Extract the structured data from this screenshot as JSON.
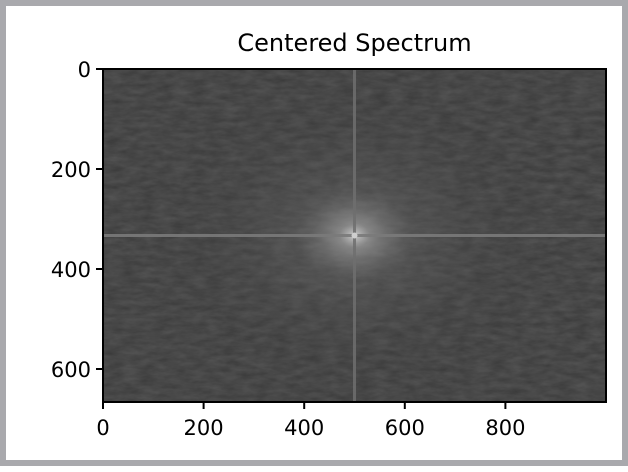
{
  "colors": {
    "frame": "#a9a9ad",
    "background": "#ffffff",
    "spectrum_dark": "#393939",
    "spectrum_bright": "#cfcfcf",
    "axis": "#000000"
  },
  "chart_data": {
    "type": "heatmap",
    "title": "Centered Spectrum",
    "xlabel": "",
    "ylabel": "",
    "xlim": [
      0,
      1000
    ],
    "ylim": [
      666,
      0
    ],
    "y_inverted": true,
    "colormap": "gray",
    "x_ticks": [
      0,
      200,
      400,
      600,
      800
    ],
    "x_tick_labels": [
      "0",
      "200",
      "400",
      "600",
      "800"
    ],
    "y_ticks": [
      0,
      200,
      400,
      600
    ],
    "y_tick_labels": [
      "0",
      "200",
      "400",
      "600"
    ],
    "center": [
      500,
      333
    ],
    "grid": false,
    "legend": "none"
  }
}
